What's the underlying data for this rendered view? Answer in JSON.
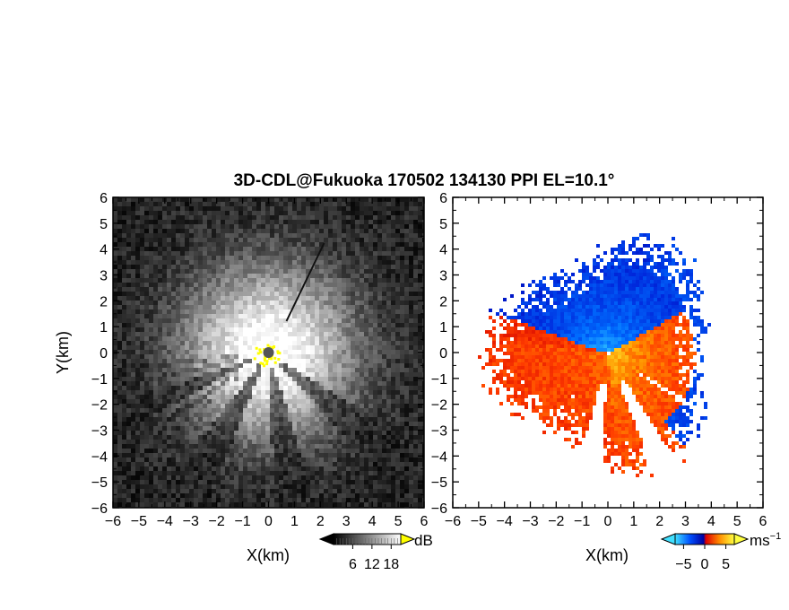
{
  "title": "3D-CDL@Fukuoka 170502 134130 PPI EL=10.1°",
  "chart_data": [
    {
      "type": "heatmap",
      "panel": "left",
      "xlabel": "X(km)",
      "ylabel": "Y(km)",
      "xlim": [
        -6,
        6
      ],
      "ylim": [
        -6,
        6
      ],
      "xticks": [
        "−6",
        "−5",
        "−4",
        "−3",
        "−2",
        "−1",
        "0",
        "1",
        "2",
        "3",
        "4",
        "5",
        "6"
      ],
      "yticks": [
        "6",
        "5",
        "4",
        "3",
        "2",
        "1",
        "0",
        "−1",
        "−2",
        "−3",
        "−4",
        "−5",
        "−6"
      ],
      "colorbar": {
        "unit": "dB",
        "ticks": [
          "6",
          "12",
          "18"
        ],
        "range": [
          0,
          21
        ],
        "colors": [
          "#000000",
          "#ffffff"
        ],
        "overflow_color": "#ffff00"
      },
      "description_values": {
        "clutter_color": "#ffff00",
        "center_marker_color": "#555555"
      }
    },
    {
      "type": "heatmap",
      "panel": "right",
      "xlabel": "X(km)",
      "ylabel": "",
      "xlim": [
        -6,
        6
      ],
      "ylim": [
        -6,
        6
      ],
      "xticks": [
        "−6",
        "−5",
        "−4",
        "−3",
        "−2",
        "−1",
        "0",
        "1",
        "2",
        "3",
        "4",
        "5",
        "6"
      ],
      "yticks": [
        "6",
        "5",
        "4",
        "3",
        "2",
        "1",
        "0",
        "−1",
        "−2",
        "−3",
        "−4",
        "−5",
        "−6"
      ],
      "colorbar": {
        "unit": "ms",
        "unit_exp": "−1",
        "ticks": [
          "−5",
          "0",
          "5"
        ],
        "range": [
          -7,
          7
        ],
        "colors": [
          "#40e0ff",
          "#0050ff",
          "#0000a0",
          "#ff0000",
          "#ff8c00",
          "#ffff40"
        ]
      }
    }
  ]
}
